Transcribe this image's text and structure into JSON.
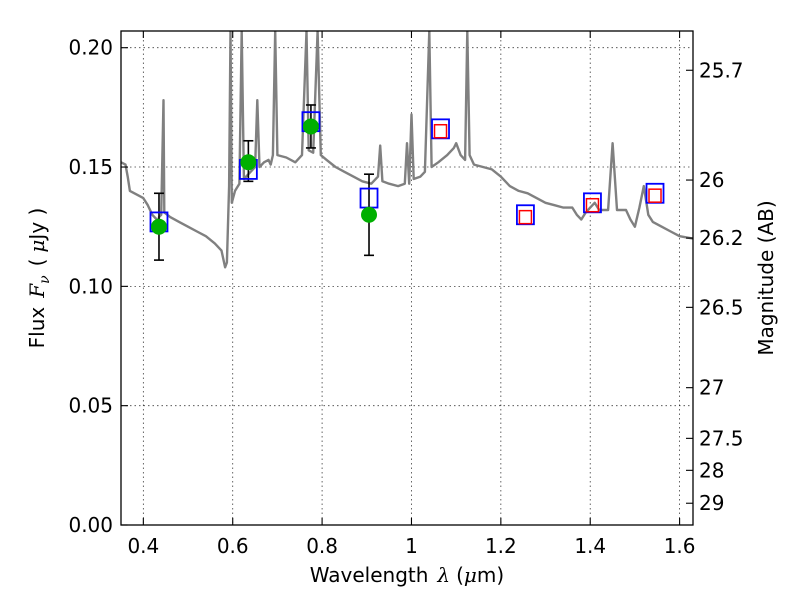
{
  "chart_data": {
    "type": "scatter",
    "title": "",
    "xlabel": "Wavelength",
    "xlabel_symbol": "λ",
    "xlabel_unit_open": "(",
    "xlabel_unit_mu": "μ",
    "xlabel_unit_rest": "m)",
    "ylabel": "Flux",
    "ylabel_symbol": "F",
    "ylabel_symbol_sub": "ν",
    "ylabel_unit_open": "(",
    "ylabel_unit_mu": "μ",
    "ylabel_unit_rest": "Jy )",
    "y2label": "Magnitude (AB)",
    "xlim": [
      0.35,
      1.63
    ],
    "ylim": [
      0.0,
      0.207
    ],
    "grid": true,
    "x_ticks": [
      {
        "value": 0.4,
        "label": "0.4"
      },
      {
        "value": 0.6,
        "label": "0.6"
      },
      {
        "value": 0.8,
        "label": "0.8"
      },
      {
        "value": 1.0,
        "label": "1"
      },
      {
        "value": 1.2,
        "label": "1.2"
      },
      {
        "value": 1.4,
        "label": "1.4"
      },
      {
        "value": 1.6,
        "label": "1.6"
      }
    ],
    "y_ticks": [
      {
        "value": 0.0,
        "label": "0.00"
      },
      {
        "value": 0.05,
        "label": "0.05"
      },
      {
        "value": 0.1,
        "label": "0.10"
      },
      {
        "value": 0.15,
        "label": "0.15"
      },
      {
        "value": 0.2,
        "label": "0.20"
      }
    ],
    "y2_ticks": [
      {
        "mag": 25.7,
        "label": "25.7"
      },
      {
        "mag": 26.0,
        "label": "26"
      },
      {
        "mag": 26.2,
        "label": "26.2"
      },
      {
        "mag": 26.5,
        "label": "26.5"
      },
      {
        "mag": 27.0,
        "label": "27"
      },
      {
        "mag": 27.5,
        "label": "27.5"
      },
      {
        "mag": 28.0,
        "label": "28"
      },
      {
        "mag": 29.0,
        "label": "29"
      }
    ],
    "series": [
      {
        "kind": "sed_model_line",
        "color": "#808080",
        "points": [
          [
            0.35,
            0.152
          ],
          [
            0.36,
            0.151
          ],
          [
            0.365,
            0.146
          ],
          [
            0.37,
            0.14
          ],
          [
            0.38,
            0.139
          ],
          [
            0.39,
            0.138
          ],
          [
            0.4,
            0.137
          ],
          [
            0.41,
            0.134
          ],
          [
            0.42,
            0.13
          ],
          [
            0.43,
            0.128
          ],
          [
            0.432,
            0.124
          ],
          [
            0.435,
            0.129
          ],
          [
            0.44,
            0.13
          ],
          [
            0.445,
            0.178
          ],
          [
            0.447,
            0.131
          ],
          [
            0.46,
            0.129
          ],
          [
            0.48,
            0.127
          ],
          [
            0.5,
            0.125
          ],
          [
            0.52,
            0.123
          ],
          [
            0.54,
            0.121
          ],
          [
            0.56,
            0.118
          ],
          [
            0.575,
            0.115
          ],
          [
            0.583,
            0.108
          ],
          [
            0.587,
            0.11
          ],
          [
            0.592,
            0.142
          ],
          [
            0.595,
            0.207
          ],
          [
            0.598,
            0.135
          ],
          [
            0.605,
            0.14
          ],
          [
            0.615,
            0.143
          ],
          [
            0.62,
            0.207
          ],
          [
            0.625,
            0.145
          ],
          [
            0.64,
            0.148
          ],
          [
            0.65,
            0.15
          ],
          [
            0.655,
            0.178
          ],
          [
            0.66,
            0.15
          ],
          [
            0.67,
            0.152
          ],
          [
            0.68,
            0.153
          ],
          [
            0.685,
            0.151
          ],
          [
            0.69,
            0.155
          ],
          [
            0.695,
            0.207
          ],
          [
            0.7,
            0.155
          ],
          [
            0.72,
            0.154
          ],
          [
            0.74,
            0.152
          ],
          [
            0.755,
            0.155
          ],
          [
            0.765,
            0.207
          ],
          [
            0.77,
            0.157
          ],
          [
            0.78,
            0.156
          ],
          [
            0.79,
            0.207
          ],
          [
            0.797,
            0.155
          ],
          [
            0.81,
            0.153
          ],
          [
            0.83,
            0.15
          ],
          [
            0.85,
            0.148
          ],
          [
            0.87,
            0.146
          ],
          [
            0.89,
            0.144
          ],
          [
            0.91,
            0.143
          ],
          [
            0.925,
            0.146
          ],
          [
            0.93,
            0.159
          ],
          [
            0.935,
            0.144
          ],
          [
            0.95,
            0.143
          ],
          [
            0.97,
            0.142
          ],
          [
            0.985,
            0.143
          ],
          [
            0.99,
            0.16
          ],
          [
            0.995,
            0.143
          ],
          [
            1.0,
            0.172
          ],
          [
            1.005,
            0.145
          ],
          [
            1.02,
            0.146
          ],
          [
            1.03,
            0.148
          ],
          [
            1.04,
            0.207
          ],
          [
            1.045,
            0.15
          ],
          [
            1.06,
            0.152
          ],
          [
            1.08,
            0.155
          ],
          [
            1.095,
            0.158
          ],
          [
            1.1,
            0.16
          ],
          [
            1.11,
            0.155
          ],
          [
            1.12,
            0.153
          ],
          [
            1.125,
            0.207
          ],
          [
            1.13,
            0.155
          ],
          [
            1.14,
            0.151
          ],
          [
            1.16,
            0.15
          ],
          [
            1.18,
            0.149
          ],
          [
            1.2,
            0.146
          ],
          [
            1.22,
            0.142
          ],
          [
            1.24,
            0.14
          ],
          [
            1.26,
            0.139
          ],
          [
            1.28,
            0.137
          ],
          [
            1.3,
            0.135
          ],
          [
            1.32,
            0.134
          ],
          [
            1.34,
            0.133
          ],
          [
            1.36,
            0.133
          ],
          [
            1.37,
            0.13
          ],
          [
            1.38,
            0.128
          ],
          [
            1.39,
            0.131
          ],
          [
            1.4,
            0.133
          ],
          [
            1.41,
            0.135
          ],
          [
            1.42,
            0.132
          ],
          [
            1.44,
            0.132
          ],
          [
            1.45,
            0.16
          ],
          [
            1.46,
            0.132
          ],
          [
            1.48,
            0.132
          ],
          [
            1.49,
            0.128
          ],
          [
            1.5,
            0.125
          ],
          [
            1.51,
            0.133
          ],
          [
            1.52,
            0.142
          ],
          [
            1.53,
            0.13
          ],
          [
            1.54,
            0.127
          ],
          [
            1.56,
            0.125
          ],
          [
            1.58,
            0.123
          ],
          [
            1.6,
            0.121
          ],
          [
            1.63,
            0.12
          ]
        ]
      },
      {
        "kind": "model_photometry",
        "marker": "square",
        "color": "#0000ff",
        "points": [
          [
            0.435,
            0.127
          ],
          [
            0.635,
            0.149
          ],
          [
            0.775,
            0.169
          ],
          [
            0.905,
            0.137
          ],
          [
            1.065,
            0.166
          ],
          [
            1.255,
            0.13
          ],
          [
            1.405,
            0.135
          ],
          [
            1.545,
            0.139
          ]
        ]
      },
      {
        "kind": "upper_limit_photometry",
        "marker": "square",
        "color": "#ff0000",
        "points": [
          [
            1.065,
            0.165
          ],
          [
            1.255,
            0.129
          ],
          [
            1.405,
            0.134
          ],
          [
            1.545,
            0.138
          ]
        ]
      },
      {
        "kind": "observed_photometry",
        "marker": "circle",
        "color": "#00b000",
        "points": [
          {
            "x": 0.435,
            "y": 0.125,
            "err_low": 0.111,
            "err_high": 0.139
          },
          {
            "x": 0.635,
            "y": 0.152,
            "err_low": 0.144,
            "err_high": 0.161
          },
          {
            "x": 0.775,
            "y": 0.167,
            "err_low": 0.158,
            "err_high": 0.176
          },
          {
            "x": 0.905,
            "y": 0.13,
            "err_low": 0.113,
            "err_high": 0.147
          }
        ]
      }
    ]
  }
}
